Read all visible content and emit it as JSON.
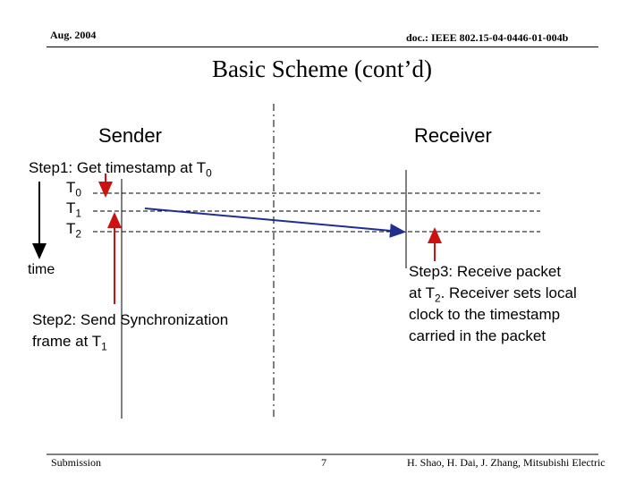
{
  "header": {
    "date": "Aug. 2004",
    "doc_id": "doc.: IEEE 802.15-04-0446-01-004b"
  },
  "slide": {
    "title": "Basic Scheme (cont’d)",
    "sender_label": "Sender",
    "receiver_label": "Receiver",
    "step1": {
      "text": "Step1: Get timestamp at T",
      "sub": "0"
    },
    "times": [
      {
        "base": "T",
        "sub": "0"
      },
      {
        "base": "T",
        "sub": "1"
      },
      {
        "base": "T",
        "sub": "2"
      }
    ],
    "time_axis_label": "time",
    "step2": {
      "line1": "Step2: Send Synchronization",
      "line2_text": "frame at T",
      "line2_sub": "1"
    },
    "step3": {
      "line1": "Step3: Receive packet",
      "line2_pre": "at T",
      "line2_sub": "2",
      "line2_post": ".   Receiver sets local",
      "line3": "clock to the timestamp",
      "line4": "carried in the packet"
    }
  },
  "footer": {
    "left": "Submission",
    "page": "7",
    "right": "H. Shao, H. Dai, J. Zhang, Mitsubishi Electric"
  },
  "colors": {
    "message_arrow": "#1f2f8f",
    "step_arrows": "#cc1111"
  }
}
